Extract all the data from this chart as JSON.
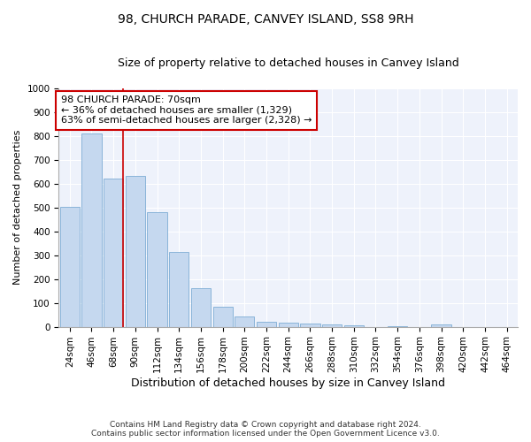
{
  "title": "98, CHURCH PARADE, CANVEY ISLAND, SS8 9RH",
  "subtitle": "Size of property relative to detached houses in Canvey Island",
  "xlabel": "Distribution of detached houses by size in Canvey Island",
  "ylabel": "Number of detached properties",
  "footer_line1": "Contains HM Land Registry data © Crown copyright and database right 2024.",
  "footer_line2": "Contains public sector information licensed under the Open Government Licence v3.0.",
  "annotation_line1": "98 CHURCH PARADE: 70sqm",
  "annotation_line2": "← 36% of detached houses are smaller (1,329)",
  "annotation_line3": "63% of semi-detached houses are larger (2,328) →",
  "bar_color": "#c5d8ef",
  "bar_edge_color": "#7eadd4",
  "vline_color": "#cc0000",
  "vline_x_index": 2,
  "categories": [
    "24sqm",
    "46sqm",
    "68sqm",
    "90sqm",
    "112sqm",
    "134sqm",
    "156sqm",
    "178sqm",
    "200sqm",
    "222sqm",
    "244sqm",
    "266sqm",
    "288sqm",
    "310sqm",
    "332sqm",
    "354sqm",
    "376sqm",
    "398sqm",
    "420sqm",
    "442sqm",
    "464sqm"
  ],
  "values": [
    502,
    810,
    622,
    634,
    480,
    314,
    160,
    83,
    43,
    22,
    18,
    13,
    10,
    5,
    0,
    2,
    0,
    8,
    0,
    0,
    0
  ],
  "ylim": [
    0,
    1000
  ],
  "yticks": [
    0,
    100,
    200,
    300,
    400,
    500,
    600,
    700,
    800,
    900,
    1000
  ],
  "background_color": "#eef2fb",
  "grid_color": "#ffffff",
  "title_fontsize": 10,
  "subtitle_fontsize": 9,
  "ylabel_fontsize": 8,
  "xlabel_fontsize": 9,
  "tick_fontsize": 7.5,
  "annotation_fontsize": 8,
  "footer_fontsize": 6.5
}
